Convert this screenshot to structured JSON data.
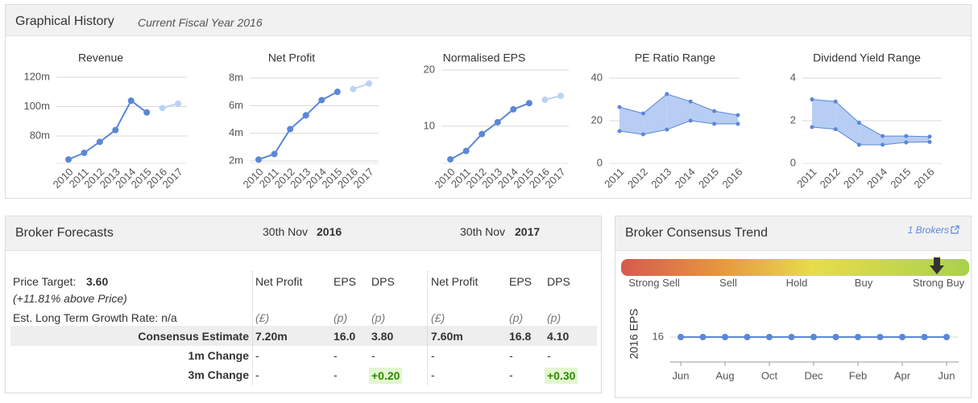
{
  "graphical_history": {
    "title": "Graphical History",
    "subtitle": "Current Fiscal Year 2016"
  },
  "chart_data": [
    {
      "type": "line",
      "title": "Revenue",
      "categories": [
        "2010",
        "2011",
        "2012",
        "2013",
        "2014",
        "2015",
        "2016",
        "2017"
      ],
      "series": [
        {
          "color": "#5b87d6",
          "values": [
            64,
            68.5,
            76,
            84,
            104,
            96,
            null,
            null
          ]
        },
        {
          "color": "#bcd2f5",
          "values": [
            null,
            null,
            null,
            null,
            null,
            null,
            99,
            102
          ]
        }
      ],
      "ylim": [
        61.4,
        124.9
      ],
      "yticks": [
        {
          "value": 80,
          "label": "80m"
        },
        {
          "value": 100,
          "label": "100m"
        },
        {
          "value": 120,
          "label": "120m"
        }
      ]
    },
    {
      "type": "line",
      "title": "Net Profit",
      "categories": [
        "2010",
        "2011",
        "2012",
        "2013",
        "2014",
        "2015",
        "2016",
        "2017"
      ],
      "series": [
        {
          "color": "#5b87d6",
          "values": [
            2.1,
            2.5,
            4.3,
            5.3,
            6.4,
            7.0,
            null,
            null
          ]
        },
        {
          "color": "#bcd2f5",
          "values": [
            null,
            null,
            null,
            null,
            null,
            null,
            7.2,
            7.6
          ]
        }
      ],
      "ylim": [
        1.83,
        8.58
      ],
      "yticks": [
        {
          "value": 2,
          "label": "2m"
        },
        {
          "value": 4,
          "label": "4m"
        },
        {
          "value": 6,
          "label": "6m"
        },
        {
          "value": 8,
          "label": "8m"
        }
      ]
    },
    {
      "type": "line",
      "title": "Normalised EPS",
      "categories": [
        "2010",
        "2011",
        "2012",
        "2013",
        "2014",
        "2015",
        "2016",
        "2017"
      ],
      "series": [
        {
          "color": "#5b87d6",
          "values": [
            4.1,
            5.6,
            8.6,
            10.7,
            13,
            14.1,
            null,
            null
          ]
        },
        {
          "color": "#bcd2f5",
          "values": [
            null,
            null,
            null,
            null,
            null,
            null,
            14.7,
            15.4
          ]
        }
      ],
      "ylim": [
        3.4,
        20
      ],
      "yticks": [
        10,
        20
      ]
    },
    {
      "type": "range",
      "title": "PE Ratio Range",
      "color": "#5b87d6",
      "fill": "#b7cdf4",
      "categories": [
        "2011",
        "2012",
        "2013",
        "2014",
        "2015",
        "2016"
      ],
      "high": [
        26.4,
        23.4,
        32.5,
        29,
        24.5,
        22.6
      ],
      "low": [
        15.1,
        13.6,
        15.8,
        20,
        18.5,
        18.5
      ],
      "ylim": [
        0,
        43.8
      ],
      "yticks": [
        0,
        20,
        40
      ]
    },
    {
      "type": "range",
      "title": "Dividend Yield Range",
      "color": "#5b87d6",
      "fill": "#b7cdf4",
      "categories": [
        "2011",
        "2012",
        "2013",
        "2014",
        "2015",
        "2016"
      ],
      "high": [
        3.0,
        2.9,
        1.9,
        1.28,
        1.28,
        1.25
      ],
      "low": [
        1.7,
        1.6,
        0.87,
        0.87,
        0.98,
        1.0
      ],
      "ylim": [
        0,
        4.38
      ],
      "yticks": [
        0,
        2,
        4
      ]
    },
    {
      "type": "line",
      "y_label": "2016 EPS",
      "categories": [
        "Jun",
        null,
        "Aug",
        null,
        "Oct",
        null,
        "Dec",
        null,
        "Feb",
        null,
        "Apr",
        null,
        "Jun"
      ],
      "series": [
        {
          "color": "#5b87d6",
          "values": [
            16,
            16,
            16,
            16,
            16,
            16,
            16,
            16,
            16,
            16,
            16,
            16,
            16
          ]
        }
      ],
      "ylim": [
        15,
        17
      ],
      "yticks": [
        16
      ]
    }
  ],
  "broker_forecasts": {
    "title": "Broker Forecasts",
    "periods": [
      {
        "date": "30th Nov",
        "year": "2016"
      },
      {
        "date": "30th Nov",
        "year": "2017"
      }
    ],
    "price_target_label": "Price Target:",
    "price_target": "3.60",
    "price_note": "(+11.81% above Price)",
    "growth": "Est. Long Term Growth Rate: n/a",
    "columns": [
      "Net Profit",
      "EPS",
      "DPS",
      "Net Profit",
      "EPS",
      "DPS"
    ],
    "units": [
      "(£)",
      "(p)",
      "(p)",
      "(£)",
      "(p)",
      "(p)"
    ],
    "rows": [
      {
        "label": "Consensus Estimate",
        "cells": [
          "7.20m",
          "16.0",
          "3.80",
          "7.60m",
          "16.8",
          "4.10"
        ]
      },
      {
        "label": "1m Change",
        "cells": [
          "-",
          "-",
          "-",
          "-",
          "-",
          "-"
        ]
      },
      {
        "label": "3m Change",
        "cells": [
          "-",
          "-",
          "+0.20",
          "-",
          "-",
          "+0.30"
        ]
      }
    ]
  },
  "consensus_trend": {
    "title": "Broker Consensus Trend",
    "link": "1 Brokers",
    "scale": [
      "Strong Sell",
      "Sell",
      "Hold",
      "Buy",
      "Strong Buy"
    ]
  }
}
